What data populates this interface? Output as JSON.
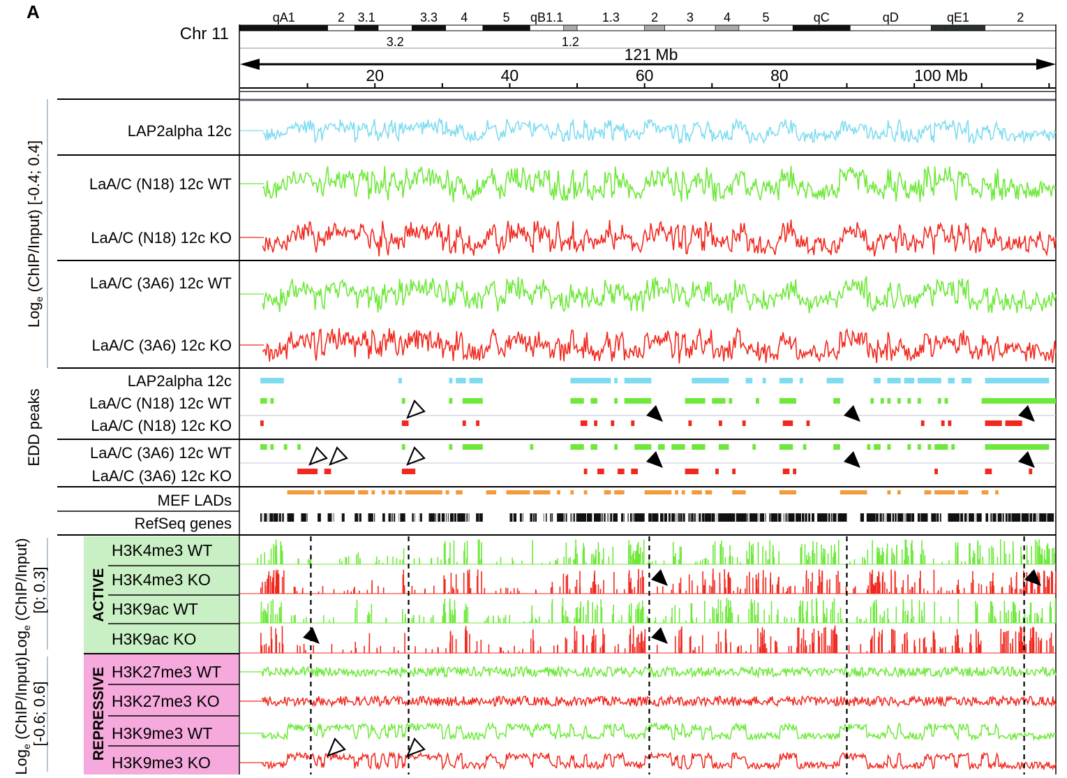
{
  "panel_label": "A",
  "chromosome": {
    "name": "Chr 11",
    "length_label": "121 Mb",
    "length_mb": 121,
    "bands": [
      {
        "label": "qA1",
        "start": 0,
        "end": 13,
        "shade": "black"
      },
      {
        "label": "2",
        "start": 13,
        "end": 17,
        "shade": "white"
      },
      {
        "label": "3.1",
        "start": 17,
        "end": 20.5,
        "shade": "black"
      },
      {
        "label": "3.2",
        "start": 20.5,
        "end": 25.5,
        "shade": "white",
        "label_below": true
      },
      {
        "label": "3.3",
        "start": 25.5,
        "end": 30.5,
        "shade": "black"
      },
      {
        "label": "4",
        "start": 30.5,
        "end": 36,
        "shade": "white"
      },
      {
        "label": "5",
        "start": 36,
        "end": 43,
        "shade": "black"
      },
      {
        "label": "qB1.1",
        "start": 43,
        "end": 48,
        "shade": "white"
      },
      {
        "label": "1.2",
        "start": 48,
        "end": 50,
        "shade": "gray",
        "label_below": true
      },
      {
        "label": "1.3",
        "start": 50,
        "end": 60,
        "shade": "white"
      },
      {
        "label": "2",
        "start": 60,
        "end": 63,
        "shade": "gray"
      },
      {
        "label": "3",
        "start": 63,
        "end": 70.5,
        "shade": "white"
      },
      {
        "label": "4",
        "start": 70.5,
        "end": 74,
        "shade": "gray"
      },
      {
        "label": "5",
        "start": 74,
        "end": 82,
        "shade": "white"
      },
      {
        "label": "qC",
        "start": 82,
        "end": 90.5,
        "shade": "black"
      },
      {
        "label": "qD",
        "start": 90.5,
        "end": 102.5,
        "shade": "white"
      },
      {
        "label": "qE1",
        "start": 102.5,
        "end": 110.5,
        "shade": "dark"
      },
      {
        "label": "2",
        "start": 110.5,
        "end": 121,
        "shade": "white"
      }
    ],
    "tick_labels": [
      {
        "mb": 20,
        "label": "20"
      },
      {
        "mb": 40,
        "label": "40"
      },
      {
        "mb": 60,
        "label": "60"
      },
      {
        "mb": 80,
        "label": "80"
      },
      {
        "mb": 100,
        "label": "100 Mb"
      }
    ],
    "minor_ticks_mb": [
      10,
      30,
      50,
      70,
      90,
      110,
      120
    ]
  },
  "axis_labels": {
    "signal_top": "Log (ChIP/Input) [-0.4; 0.4]",
    "signal_top_main": "Log",
    "signal_top_sub": "e",
    "signal_top_rest": " (ChIP/Input) [-0.4; 0.4]",
    "edd": "EDD peaks",
    "active_main": "Log",
    "active_sub": "e",
    "active_rest": " (ChIP/Input)",
    "active_range": "[0; 0.3]",
    "repressive_main": "Log",
    "repressive_sub": "e",
    "repressive_rest": " (ChIP/Input)",
    "repressive_range": "[-0.6; 0.6]",
    "active_group": "ACTIVE",
    "repressive_group": "REPRESSIVE"
  },
  "colors": {
    "cyan": "#7fdcf0",
    "green": "#6ee83a",
    "red": "#f0281e",
    "orange": "#f39a3a",
    "black": "#111111",
    "active_bg": "#c9f0c4",
    "repressive_bg": "#f6a9dc"
  },
  "signal_tracks": [
    {
      "label": "LAP2alpha 12c",
      "color": "cyan"
    },
    {
      "label": "LaA/C (N18) 12c WT",
      "color": "green"
    },
    {
      "label": "LaA/C (N18) 12c KO",
      "color": "red"
    },
    {
      "label": "LaA/C (3A6) 12c WT",
      "color": "green"
    },
    {
      "label": "LaA/C (3A6) 12c KO",
      "color": "red"
    }
  ],
  "edd_tracks": [
    {
      "label": "LAP2alpha 12c",
      "color": "cyan",
      "segments": [
        [
          3,
          6.5
        ],
        [
          23.5,
          24
        ],
        [
          31,
          31.5
        ],
        [
          32,
          33.5
        ],
        [
          34,
          36
        ],
        [
          49,
          55
        ],
        [
          55.5,
          56
        ],
        [
          57,
          61
        ],
        [
          67,
          72.5
        ],
        [
          75,
          76
        ],
        [
          77.5,
          78
        ],
        [
          80,
          82
        ],
        [
          83,
          83.5
        ],
        [
          87,
          89.5
        ],
        [
          94,
          95
        ],
        [
          96,
          98
        ],
        [
          98.5,
          100
        ],
        [
          100.5,
          104
        ],
        [
          105,
          106
        ],
        [
          107,
          108.5
        ],
        [
          110.5,
          120
        ]
      ]
    },
    {
      "label": "LaA/C (N18) 12c WT",
      "color": "green",
      "segments": [
        [
          3,
          4
        ],
        [
          4.5,
          5
        ],
        [
          24,
          24.5
        ],
        [
          31,
          31.5
        ],
        [
          33,
          36
        ],
        [
          49,
          51
        ],
        [
          52,
          53
        ],
        [
          55.5,
          56
        ],
        [
          57,
          61
        ],
        [
          66,
          69
        ],
        [
          70,
          72
        ],
        [
          72.5,
          73
        ],
        [
          76.5,
          77
        ],
        [
          80,
          82.5
        ],
        [
          88,
          89
        ],
        [
          93.5,
          94
        ],
        [
          95,
          95.5
        ],
        [
          96,
          96.5
        ],
        [
          97.5,
          98
        ],
        [
          99,
          99.5
        ],
        [
          100.5,
          101
        ],
        [
          103.5,
          104
        ],
        [
          104.5,
          105
        ],
        [
          110,
          121
        ]
      ]
    },
    {
      "label": "LaA/C (N18) 12c KO",
      "color": "red",
      "segments": [
        [
          3,
          3.5
        ],
        [
          24,
          25
        ],
        [
          33,
          33.5
        ],
        [
          35,
          35.5
        ],
        [
          50.5,
          51.5
        ],
        [
          52.5,
          53
        ],
        [
          55,
          55.5
        ],
        [
          58,
          58.5
        ],
        [
          66.5,
          67
        ],
        [
          71,
          71.5
        ],
        [
          74.5,
          75
        ],
        [
          80.5,
          82
        ],
        [
          84,
          84.5
        ],
        [
          101,
          101.5
        ],
        [
          104,
          104.5
        ],
        [
          105,
          105.5
        ],
        [
          110.5,
          113
        ],
        [
          113.5,
          116
        ]
      ]
    }
  ],
  "edd_tracks_2": [
    {
      "label": "LaA/C (3A6) 12c WT",
      "color": "green",
      "segments": [
        [
          3,
          4
        ],
        [
          4.5,
          5
        ],
        [
          6.5,
          7
        ],
        [
          8.5,
          9
        ],
        [
          24,
          24.5
        ],
        [
          31,
          31.5
        ],
        [
          33,
          36
        ],
        [
          43,
          43.5
        ],
        [
          49,
          51
        ],
        [
          52,
          53
        ],
        [
          55.5,
          56
        ],
        [
          58.5,
          61
        ],
        [
          62,
          63
        ],
        [
          64,
          66
        ],
        [
          67,
          69
        ],
        [
          71,
          72.5
        ],
        [
          76,
          76.5
        ],
        [
          80,
          82
        ],
        [
          83.5,
          84
        ],
        [
          88,
          89
        ],
        [
          93,
          93.5
        ],
        [
          94,
          95
        ],
        [
          96,
          96.5
        ],
        [
          99,
          99.5
        ],
        [
          100.5,
          101
        ],
        [
          102,
          102.5
        ],
        [
          103,
          105
        ],
        [
          105.5,
          106
        ],
        [
          110.5,
          120
        ]
      ]
    },
    {
      "label": "LaA/C (3A6) 12c KO",
      "color": "red",
      "segments": [
        [
          8.5,
          11.5
        ],
        [
          12.5,
          13.5
        ],
        [
          24,
          26
        ],
        [
          51,
          51.5
        ],
        [
          53,
          54
        ],
        [
          56,
          57
        ],
        [
          58,
          59
        ],
        [
          66,
          68
        ],
        [
          70.5,
          71
        ],
        [
          73,
          73.5
        ],
        [
          80.5,
          81.5
        ],
        [
          82,
          82.5
        ],
        [
          103,
          103.5
        ],
        [
          110.5,
          111.5
        ],
        [
          117,
          117.5
        ]
      ]
    }
  ],
  "lads": {
    "label": "MEF LADs",
    "color": "orange",
    "segments": [
      [
        7,
        11
      ],
      [
        11.5,
        12
      ],
      [
        12.5,
        17
      ],
      [
        17.5,
        19
      ],
      [
        19.5,
        20
      ],
      [
        21,
        21.5
      ],
      [
        22,
        23
      ],
      [
        23.5,
        24
      ],
      [
        24.5,
        30
      ],
      [
        30.5,
        31
      ],
      [
        32,
        33
      ],
      [
        36.5,
        38
      ],
      [
        39.5,
        43
      ],
      [
        43.5,
        46
      ],
      [
        47,
        47.5
      ],
      [
        49,
        49.5
      ],
      [
        51,
        51.5
      ],
      [
        54,
        55
      ],
      [
        55.5,
        57
      ],
      [
        60,
        64
      ],
      [
        64.5,
        65
      ],
      [
        65.5,
        66
      ],
      [
        67,
        68.5
      ],
      [
        69,
        70
      ],
      [
        73,
        75
      ],
      [
        80,
        82.5
      ],
      [
        89,
        93
      ],
      [
        96,
        96.5
      ],
      [
        97.5,
        98
      ],
      [
        101.5,
        102.5
      ],
      [
        103,
        106
      ],
      [
        106.5,
        108
      ],
      [
        110,
        111
      ],
      [
        112,
        112.5
      ]
    ]
  },
  "refseq": {
    "label": "RefSeq genes",
    "color": "black",
    "segments": [
      [
        3,
        6.5
      ],
      [
        7,
        8
      ],
      [
        9,
        10
      ],
      [
        11.5,
        12
      ],
      [
        13,
        14
      ],
      [
        15,
        15.5
      ],
      [
        17,
        18
      ],
      [
        19,
        20
      ],
      [
        21,
        21.5
      ],
      [
        22,
        23
      ],
      [
        23.5,
        24.5
      ],
      [
        25.5,
        26
      ],
      [
        26.5,
        27
      ],
      [
        28,
        34
      ],
      [
        35,
        36
      ],
      [
        40,
        41
      ],
      [
        41.5,
        42
      ],
      [
        43,
        44
      ],
      [
        45,
        45.5
      ],
      [
        46,
        46.5
      ],
      [
        47,
        48.5
      ],
      [
        49,
        56
      ],
      [
        56.5,
        57
      ],
      [
        57.5,
        60
      ],
      [
        60.5,
        66
      ],
      [
        66.5,
        78
      ],
      [
        78.5,
        90
      ],
      [
        92,
        100
      ],
      [
        100.5,
        102
      ],
      [
        102.5,
        104
      ],
      [
        105,
        110
      ],
      [
        110.5,
        121
      ]
    ]
  },
  "histone_active": [
    {
      "label": "H3K4me3 WT",
      "color": "green"
    },
    {
      "label": "H3K4me3 KO",
      "color": "red"
    },
    {
      "label": "H3K9ac WT",
      "color": "green"
    },
    {
      "label": "H3K9ac KO",
      "color": "red"
    }
  ],
  "histone_repressive": [
    {
      "label": "H3K27me3 WT",
      "color": "green"
    },
    {
      "label": "H3K27me3 KO",
      "color": "red"
    },
    {
      "label": "H3K9me3 WT",
      "color": "green"
    },
    {
      "label": "H3K9me3 KO",
      "color": "red"
    }
  ],
  "dashed_lines_mb": [
    10.5,
    25,
    60.7,
    90,
    116.3
  ]
}
